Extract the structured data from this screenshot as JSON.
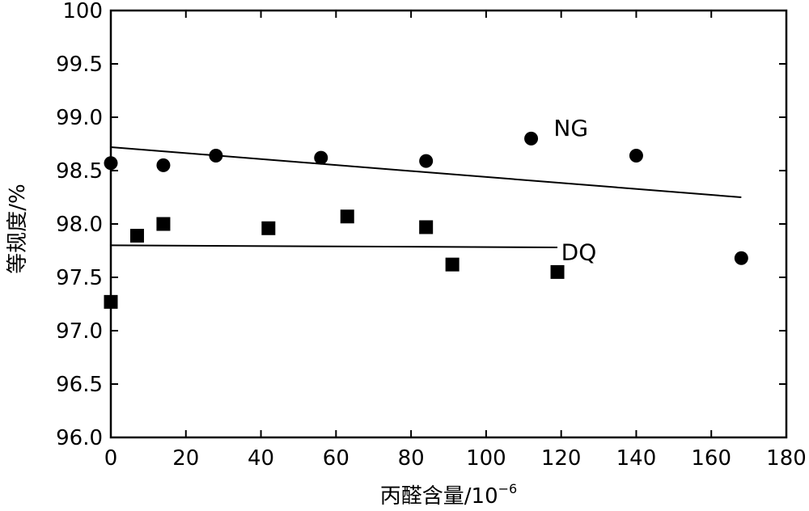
{
  "chart_data": {
    "type": "scatter",
    "xlabel": "丙醛含量/10",
    "xlabel_exponent": "−6",
    "ylabel": "等规度/%",
    "xlim": [
      0,
      180
    ],
    "ylim": [
      96.0,
      100
    ],
    "x_ticks": [
      0,
      20,
      40,
      60,
      80,
      100,
      120,
      140,
      160,
      180
    ],
    "x_tick_labels": [
      "0",
      "20",
      "40",
      "60",
      "80",
      "100",
      "120",
      "140",
      "160",
      "180"
    ],
    "y_ticks": [
      96.0,
      96.5,
      97.0,
      97.5,
      98.0,
      98.5,
      99.0,
      99.5,
      100
    ],
    "y_tick_labels": [
      "96.0",
      "96.5",
      "97.0",
      "97.5",
      "98.0",
      "98.5",
      "99.0",
      "99.5",
      "100"
    ],
    "grid": false,
    "legend": "none",
    "series": [
      {
        "name": "NG",
        "marker": "circle",
        "points": [
          [
            0,
            98.57
          ],
          [
            14,
            98.55
          ],
          [
            28,
            98.64
          ],
          [
            56,
            98.62
          ],
          [
            84,
            98.59
          ],
          [
            112,
            98.8
          ],
          [
            140,
            98.64
          ],
          [
            168,
            97.68
          ]
        ],
        "trend": [
          [
            0,
            98.72
          ],
          [
            168,
            98.25
          ]
        ],
        "label_at": [
          118,
          98.9
        ]
      },
      {
        "name": "DQ",
        "marker": "square",
        "points": [
          [
            0,
            97.27
          ],
          [
            7,
            97.89
          ],
          [
            14,
            98.0
          ],
          [
            42,
            97.96
          ],
          [
            63,
            98.07
          ],
          [
            84,
            97.97
          ],
          [
            91,
            97.62
          ],
          [
            119,
            97.55
          ]
        ],
        "trend": [
          [
            0,
            97.8
          ],
          [
            119,
            97.78
          ]
        ],
        "label_at": [
          120,
          97.74
        ]
      }
    ]
  }
}
